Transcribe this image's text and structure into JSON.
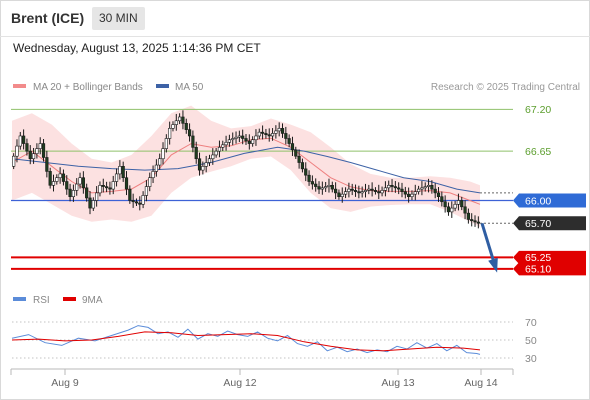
{
  "header": {
    "instrument": "Brent (ICE)",
    "timeframe": "30 MIN"
  },
  "timestamp": "Wednesday, August 13, 2025 1:14:36 PM CET",
  "legend": {
    "items": [
      {
        "label": "MA 20 + Bollinger Bands",
        "color": "#f28b8b"
      },
      {
        "label": "MA 50",
        "color": "#3d62a6"
      }
    ],
    "source": "Research © 2025 Trading Central"
  },
  "rsi_legend": {
    "items": [
      {
        "label": "RSI",
        "color": "#5b8cd9"
      },
      {
        "label": "9MA",
        "color": "#e00000"
      }
    ]
  },
  "chart_data": [
    {
      "type": "line",
      "title": "Brent (ICE) 30 MIN",
      "ylim": [
        64.9,
        67.35
      ],
      "x_ticks": [
        "Aug 9",
        "Aug 12",
        "Aug 13",
        "Aug 14"
      ],
      "levels": [
        {
          "value": 67.2,
          "label": "67.20",
          "kind": "resistance"
        },
        {
          "value": 66.65,
          "label": "66.65",
          "kind": "resistance"
        },
        {
          "value": 66.0,
          "label": "66.00",
          "kind": "pivot"
        },
        {
          "value": 65.7,
          "label": "65.70",
          "kind": "last"
        },
        {
          "value": 65.25,
          "label": "65.25",
          "kind": "support"
        },
        {
          "value": 65.1,
          "label": "65.10",
          "kind": "support"
        }
      ],
      "price_path": [
        [
          0,
          66.45
        ],
        [
          3,
          66.85
        ],
        [
          6,
          66.55
        ],
        [
          9,
          66.75
        ],
        [
          12,
          66.2
        ],
        [
          15,
          66.35
        ],
        [
          18,
          66.05
        ],
        [
          21,
          66.3
        ],
        [
          24,
          65.9
        ],
        [
          27,
          66.2
        ],
        [
          30,
          66.15
        ],
        [
          33,
          66.45
        ],
        [
          36,
          66.0
        ],
        [
          39,
          65.95
        ],
        [
          42,
          66.3
        ],
        [
          45,
          66.55
        ],
        [
          48,
          66.95
        ],
        [
          51,
          67.1
        ],
        [
          54,
          66.85
        ],
        [
          57,
          66.4
        ],
        [
          60,
          66.55
        ],
        [
          63,
          66.7
        ],
        [
          66,
          66.8
        ],
        [
          69,
          66.85
        ],
        [
          72,
          66.75
        ],
        [
          75,
          66.9
        ],
        [
          78,
          66.85
        ],
        [
          81,
          66.95
        ],
        [
          84,
          66.75
        ],
        [
          87,
          66.5
        ],
        [
          90,
          66.25
        ],
        [
          93,
          66.15
        ],
        [
          96,
          66.2
        ],
        [
          99,
          66.05
        ],
        [
          102,
          66.15
        ],
        [
          105,
          66.1
        ],
        [
          108,
          66.15
        ],
        [
          111,
          66.1
        ],
        [
          114,
          66.2
        ],
        [
          117,
          66.15
        ],
        [
          120,
          66.05
        ],
        [
          123,
          66.15
        ],
        [
          126,
          66.2
        ],
        [
          129,
          66.05
        ],
        [
          132,
          65.85
        ],
        [
          135,
          66.0
        ],
        [
          138,
          65.75
        ],
        [
          141,
          65.7
        ]
      ],
      "ma20": [
        [
          0,
          66.5
        ],
        [
          6,
          66.65
        ],
        [
          12,
          66.45
        ],
        [
          18,
          66.25
        ],
        [
          24,
          66.1
        ],
        [
          30,
          66.12
        ],
        [
          36,
          66.15
        ],
        [
          42,
          66.3
        ],
        [
          48,
          66.6
        ],
        [
          54,
          66.75
        ],
        [
          60,
          66.7
        ],
        [
          66,
          66.72
        ],
        [
          72,
          66.8
        ],
        [
          78,
          66.82
        ],
        [
          84,
          66.7
        ],
        [
          90,
          66.5
        ],
        [
          96,
          66.3
        ],
        [
          102,
          66.18
        ],
        [
          108,
          66.13
        ],
        [
          114,
          66.12
        ],
        [
          120,
          66.12
        ],
        [
          126,
          66.13
        ],
        [
          132,
          66.1
        ],
        [
          138,
          66.0
        ],
        [
          141,
          65.95
        ]
      ],
      "ma50": [
        [
          0,
          66.55
        ],
        [
          10,
          66.5
        ],
        [
          20,
          66.45
        ],
        [
          30,
          66.42
        ],
        [
          40,
          66.4
        ],
        [
          50,
          66.42
        ],
        [
          60,
          66.5
        ],
        [
          70,
          66.62
        ],
        [
          80,
          66.7
        ],
        [
          88,
          66.65
        ],
        [
          95,
          66.58
        ],
        [
          102,
          66.5
        ],
        [
          110,
          66.4
        ],
        [
          118,
          66.3
        ],
        [
          126,
          66.25
        ],
        [
          134,
          66.15
        ],
        [
          141,
          66.1
        ]
      ],
      "bollinger_upper": [
        [
          0,
          67.05
        ],
        [
          6,
          67.15
        ],
        [
          12,
          67.0
        ],
        [
          18,
          66.75
        ],
        [
          24,
          66.55
        ],
        [
          30,
          66.5
        ],
        [
          36,
          66.6
        ],
        [
          42,
          66.85
        ],
        [
          48,
          67.15
        ],
        [
          54,
          67.25
        ],
        [
          60,
          67.05
        ],
        [
          66,
          66.95
        ],
        [
          72,
          66.98
        ],
        [
          78,
          67.08
        ],
        [
          84,
          67.0
        ],
        [
          90,
          66.9
        ],
        [
          96,
          66.7
        ],
        [
          102,
          66.48
        ],
        [
          108,
          66.35
        ],
        [
          114,
          66.3
        ],
        [
          120,
          66.3
        ],
        [
          126,
          66.32
        ],
        [
          132,
          66.3
        ],
        [
          138,
          66.25
        ],
        [
          141,
          66.2
        ]
      ],
      "bollinger_lower": [
        [
          0,
          66.0
        ],
        [
          6,
          66.1
        ],
        [
          12,
          65.95
        ],
        [
          18,
          65.8
        ],
        [
          24,
          65.72
        ],
        [
          30,
          65.75
        ],
        [
          36,
          65.72
        ],
        [
          42,
          65.8
        ],
        [
          48,
          66.1
        ],
        [
          54,
          66.3
        ],
        [
          60,
          66.38
        ],
        [
          66,
          66.45
        ],
        [
          72,
          66.55
        ],
        [
          78,
          66.58
        ],
        [
          84,
          66.4
        ],
        [
          90,
          66.1
        ],
        [
          96,
          65.9
        ],
        [
          102,
          65.85
        ],
        [
          108,
          65.92
        ],
        [
          114,
          65.94
        ],
        [
          120,
          65.95
        ],
        [
          126,
          65.95
        ],
        [
          132,
          65.85
        ],
        [
          138,
          65.72
        ],
        [
          141,
          65.65
        ]
      ],
      "projection": [
        [
          141,
          65.7
        ],
        [
          147,
          65.1
        ]
      ]
    },
    {
      "type": "line",
      "title": "RSI",
      "ylim": [
        20,
        80
      ],
      "y_ticks": [
        70,
        50,
        30
      ],
      "series": [
        {
          "name": "RSI",
          "values": [
            [
              0,
              52
            ],
            [
              5,
              56
            ],
            [
              10,
              47
            ],
            [
              15,
              44
            ],
            [
              20,
              52
            ],
            [
              25,
              49
            ],
            [
              30,
              55
            ],
            [
              35,
              61
            ],
            [
              38,
              66
            ],
            [
              41,
              64
            ],
            [
              44,
              57
            ],
            [
              47,
              59
            ],
            [
              50,
              53
            ],
            [
              53,
              62
            ],
            [
              56,
              51
            ],
            [
              59,
              57
            ],
            [
              62,
              54
            ],
            [
              65,
              60
            ],
            [
              68,
              56
            ],
            [
              71,
              54
            ],
            [
              74,
              59
            ],
            [
              77,
              52
            ],
            [
              80,
              49
            ],
            [
              83,
              55
            ],
            [
              86,
              46
            ],
            [
              89,
              43
            ],
            [
              92,
              48
            ],
            [
              95,
              38
            ],
            [
              98,
              42
            ],
            [
              101,
              37
            ],
            [
              104,
              40
            ],
            [
              107,
              36
            ],
            [
              110,
              39
            ],
            [
              113,
              37
            ],
            [
              116,
              43
            ],
            [
              119,
              40
            ],
            [
              122,
              47
            ],
            [
              125,
              41
            ],
            [
              128,
              46
            ],
            [
              131,
              38
            ],
            [
              134,
              44
            ],
            [
              137,
              36
            ],
            [
              140,
              35
            ],
            [
              141,
              34
            ]
          ]
        },
        {
          "name": "9MA",
          "values": [
            [
              0,
              50
            ],
            [
              8,
              51
            ],
            [
              16,
              49
            ],
            [
              24,
              50
            ],
            [
              32,
              54
            ],
            [
              40,
              59
            ],
            [
              48,
              58
            ],
            [
              56,
              55
            ],
            [
              64,
              56
            ],
            [
              72,
              57
            ],
            [
              80,
              55
            ],
            [
              88,
              48
            ],
            [
              96,
              43
            ],
            [
              104,
              39
            ],
            [
              112,
              38
            ],
            [
              120,
              40
            ],
            [
              128,
              42
            ],
            [
              136,
              41
            ],
            [
              141,
              39
            ]
          ]
        }
      ]
    }
  ]
}
